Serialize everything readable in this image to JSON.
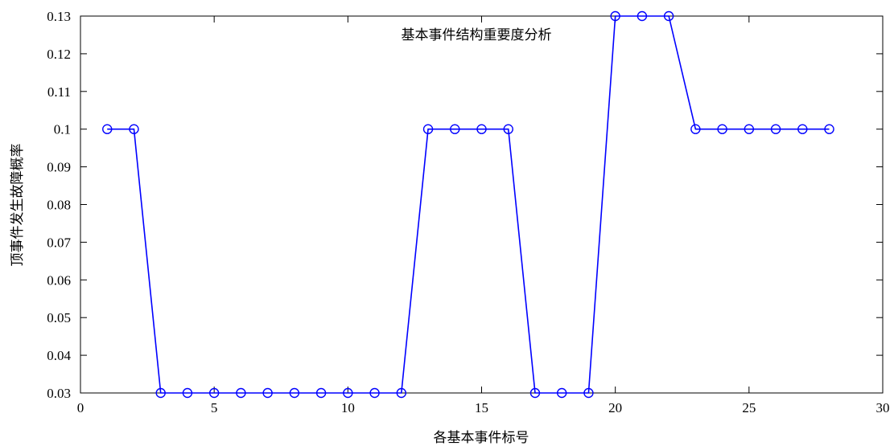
{
  "chart_data": {
    "type": "line",
    "title": "基本事件结构重要度分析",
    "xlabel": "各基本事件标号",
    "ylabel": "顶事件发生故障概率",
    "xlim": [
      0,
      30
    ],
    "ylim": [
      0.03,
      0.13
    ],
    "xticks": [
      0,
      5,
      10,
      15,
      20,
      25,
      30
    ],
    "yticks": [
      0.03,
      0.04,
      0.05,
      0.06,
      0.07,
      0.08,
      0.09,
      0.1,
      0.11,
      0.12,
      0.13
    ],
    "xtick_labels": [
      "0",
      "5",
      "10",
      "15",
      "20",
      "25",
      "30"
    ],
    "ytick_labels": [
      "0.03",
      "0.04",
      "0.05",
      "0.06",
      "0.07",
      "0.08",
      "0.09",
      "0.1",
      "0.11",
      "0.12",
      "0.13"
    ],
    "grid": false,
    "colors": {
      "series": "#0000ff",
      "axis": "#000000"
    },
    "series": [
      {
        "marker": "circle",
        "x": [
          1,
          2,
          3,
          4,
          5,
          6,
          7,
          8,
          9,
          10,
          11,
          12,
          13,
          14,
          15,
          16,
          17,
          18,
          19,
          20,
          21,
          22,
          23,
          24,
          25,
          26,
          27,
          28
        ],
        "y": [
          0.1,
          0.1,
          0.03,
          0.03,
          0.03,
          0.03,
          0.03,
          0.03,
          0.03,
          0.03,
          0.03,
          0.03,
          0.1,
          0.1,
          0.1,
          0.1,
          0.03,
          0.03,
          0.03,
          0.13,
          0.13,
          0.13,
          0.1,
          0.1,
          0.1,
          0.1,
          0.1,
          0.1
        ]
      }
    ]
  }
}
